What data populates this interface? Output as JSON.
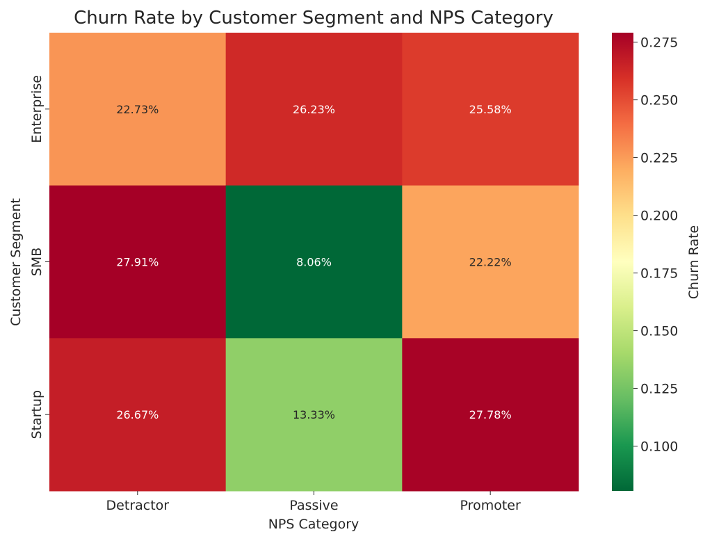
{
  "chart_data": {
    "type": "heatmap",
    "title": "Churn Rate by Customer Segment and NPS Category",
    "xlabel": "NPS Category",
    "ylabel": "Customer Segment",
    "x_categories": [
      "Detractor",
      "Passive",
      "Promoter"
    ],
    "y_categories": [
      "Enterprise",
      "SMB",
      "Startup"
    ],
    "values": [
      [
        0.2273,
        0.2623,
        0.2558
      ],
      [
        0.2791,
        0.0806,
        0.2222
      ],
      [
        0.2667,
        0.1333,
        0.2778
      ]
    ],
    "annotations": [
      [
        "22.73%",
        "26.23%",
        "25.58%"
      ],
      [
        "27.91%",
        "8.06%",
        "22.22%"
      ],
      [
        "26.67%",
        "13.33%",
        "27.78%"
      ]
    ],
    "colormap": "RdYlGn_r",
    "colormap_colors": [
      "#006837",
      "#1a9850",
      "#66bd63",
      "#a6d96a",
      "#d9ef8b",
      "#ffffbf",
      "#fee08b",
      "#fdae61",
      "#f46d43",
      "#d73027",
      "#a50026"
    ],
    "colorbar": {
      "label": "Churn Rate",
      "range": [
        0.0806,
        0.2791
      ],
      "ticks": [
        "0.100",
        "0.125",
        "0.150",
        "0.175",
        "0.200",
        "0.225",
        "0.250",
        "0.275"
      ]
    }
  }
}
